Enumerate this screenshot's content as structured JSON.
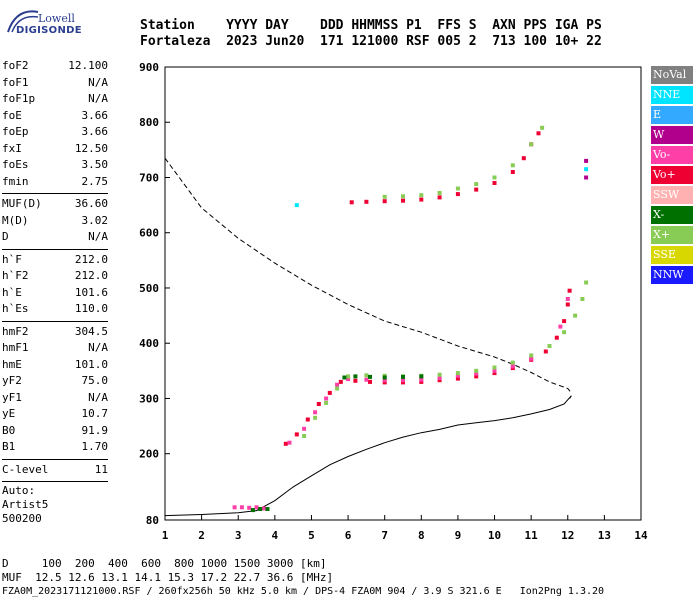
{
  "logo": {
    "line1": "Lowell",
    "line2": "DIGISONDE"
  },
  "header": {
    "columns": "Station    YYYY DAY    DDD HHMMSS P1  FFS S  AXN PPS IGA PS",
    "values": "Fortaleza  2023 Jun20  171 121000 RSF 005 2  713 100 10+ 22"
  },
  "params": {
    "group1": [
      {
        "k": "foF2",
        "v": "12.100"
      },
      {
        "k": "foF1",
        "v": "N/A"
      },
      {
        "k": "foF1p",
        "v": "N/A"
      },
      {
        "k": "foE",
        "v": "3.66"
      },
      {
        "k": "foEp",
        "v": "3.66"
      },
      {
        "k": "fxI",
        "v": "12.50"
      },
      {
        "k": "foEs",
        "v": "3.50"
      },
      {
        "k": "fmin",
        "v": "2.75"
      }
    ],
    "group2": [
      {
        "k": "MUF(D)",
        "v": "36.60"
      },
      {
        "k": "M(D)",
        "v": "3.02"
      },
      {
        "k": "D",
        "v": "N/A"
      }
    ],
    "group3": [
      {
        "k": "h`F",
        "v": "212.0"
      },
      {
        "k": "h`F2",
        "v": "212.0"
      },
      {
        "k": "h`E",
        "v": "101.6"
      },
      {
        "k": "h`Es",
        "v": "110.0"
      }
    ],
    "group4": [
      {
        "k": "hmF2",
        "v": "304.5"
      },
      {
        "k": "hmF1",
        "v": "N/A"
      },
      {
        "k": "hmE",
        "v": "101.0"
      },
      {
        "k": "yF2",
        "v": "75.0"
      },
      {
        "k": "yF1",
        "v": "N/A"
      },
      {
        "k": "yE",
        "v": "10.7"
      },
      {
        "k": "B0",
        "v": "91.9"
      },
      {
        "k": "B1",
        "v": "1.70"
      }
    ],
    "group5": [
      {
        "k": "C-level",
        "v": "11"
      }
    ],
    "auto": [
      "Auto:",
      "Artist5",
      "500200"
    ]
  },
  "legend": [
    {
      "label": "NoVal",
      "color": "#808080"
    },
    {
      "label": "NNE",
      "color": "#00e5ff"
    },
    {
      "label": "E",
      "color": "#33aaff"
    },
    {
      "label": "W",
      "color": "#b0008c"
    },
    {
      "label": "Vo-",
      "color": "#ff3fa8"
    },
    {
      "label": "Vo+",
      "color": "#ee0033"
    },
    {
      "label": "SSW",
      "color": "#ffb0b0"
    },
    {
      "label": "X-",
      "color": "#007000"
    },
    {
      "label": "X+",
      "color": "#88cc55"
    },
    {
      "label": "SSE",
      "color": "#d8d800"
    },
    {
      "label": "NNW",
      "color": "#1a1aff"
    }
  ],
  "bottom": {
    "d_line": "D     100  200  400  600  800 1000 1500 3000 [km]",
    "muf_line": "MUF  12.5 12.6 13.1 14.1 15.3 17.2 22.7 36.6 [MHz]"
  },
  "footer": "FZA0M_2023171121000.RSF / 260fx256h 50 kHz 5.0 km / DPS-4 FZA0M 904 / 3.9 S 321.6 E   Ion2Png 1.3.20",
  "chart_data": {
    "type": "scatter",
    "x_ticks": [
      1,
      2,
      3,
      4,
      5,
      6,
      7,
      8,
      9,
      10,
      11,
      12,
      13,
      14
    ],
    "y_ticks": [
      80,
      200,
      300,
      400,
      500,
      600,
      700,
      800,
      900
    ],
    "xlim": [
      1,
      14
    ],
    "ylim": [
      80,
      900
    ],
    "grid": false,
    "series": [
      {
        "name": "profile",
        "color": "#000000",
        "style": "solid",
        "x": [
          1.0,
          2.0,
          3.0,
          3.5,
          4.0,
          4.5,
          5.0,
          5.5,
          6.0,
          6.5,
          7.0,
          7.5,
          8.0,
          8.5,
          9.0,
          9.5,
          10.0,
          10.5,
          11.0,
          11.5,
          11.9,
          12.1,
          12.05
        ],
        "y": [
          88,
          90,
          93,
          97,
          115,
          140,
          160,
          180,
          195,
          208,
          220,
          230,
          238,
          244,
          252,
          256,
          260,
          265,
          272,
          280,
          290,
          305,
          300
        ]
      },
      {
        "name": "dashed",
        "color": "#000000",
        "style": "dashed",
        "x": [
          1.0,
          1.5,
          2.0,
          3.0,
          4.0,
          5.0,
          6.0,
          7.0,
          8.0,
          9.0,
          10.0,
          10.5,
          11.0,
          11.5,
          12.0,
          12.1
        ],
        "y": [
          735,
          690,
          645,
          590,
          545,
          505,
          470,
          440,
          420,
          395,
          375,
          362,
          347,
          330,
          318,
          310
        ]
      },
      {
        "name": "Vo+",
        "color": "#ee0033",
        "style": "points",
        "x": [
          4.3,
          4.6,
          4.9,
          5.2,
          5.5,
          5.8,
          6.2,
          6.6,
          7.0,
          7.5,
          8.0,
          8.5,
          9.0,
          9.5,
          10.0,
          10.5,
          11.0,
          11.4,
          11.7,
          11.9,
          12.0,
          12.05
        ],
        "y": [
          218,
          235,
          262,
          290,
          310,
          330,
          332,
          330,
          329,
          329,
          330,
          333,
          336,
          340,
          346,
          355,
          370,
          385,
          410,
          440,
          470,
          495
        ]
      },
      {
        "name": "Vo-",
        "color": "#ff3fa8",
        "style": "points",
        "x": [
          4.4,
          4.8,
          5.1,
          5.4,
          5.7,
          6.0,
          6.5,
          7.0,
          7.5,
          8.0,
          8.5,
          9.0,
          9.5,
          10.0,
          10.5,
          11.0,
          11.5,
          11.8,
          12.0
        ],
        "y": [
          220,
          245,
          275,
          300,
          325,
          335,
          334,
          333,
          333,
          334,
          337,
          341,
          345,
          350,
          358,
          372,
          395,
          430,
          480
        ]
      },
      {
        "name": "X+",
        "color": "#88cc55",
        "style": "points",
        "x": [
          4.8,
          5.1,
          5.4,
          5.7,
          6.0,
          6.5,
          7.0,
          7.5,
          8.0,
          8.5,
          9.0,
          9.5,
          10.0,
          10.5,
          11.0,
          11.5,
          11.9,
          12.2,
          12.4,
          12.5
        ],
        "y": [
          232,
          265,
          292,
          318,
          340,
          342,
          341,
          340,
          341,
          343,
          346,
          350,
          356,
          365,
          378,
          395,
          420,
          450,
          480,
          510
        ]
      },
      {
        "name": "X-",
        "color": "#007000",
        "style": "points",
        "x": [
          5.9,
          6.2,
          6.6,
          7.0,
          7.5,
          8.0
        ],
        "y": [
          338,
          340,
          339,
          338,
          339,
          340
        ]
      },
      {
        "name": "Vo+ upper",
        "color": "#ee0033",
        "style": "points",
        "x": [
          6.1,
          6.5,
          7.0,
          7.5,
          8.0,
          8.5,
          9.0,
          9.5,
          10.0,
          10.5,
          10.8,
          11.0,
          11.2
        ],
        "y": [
          655,
          656,
          657,
          658,
          660,
          664,
          670,
          678,
          690,
          710,
          735,
          760,
          780
        ]
      },
      {
        "name": "X+ upper",
        "color": "#88cc55",
        "style": "points",
        "x": [
          7.0,
          7.5,
          8.0,
          8.5,
          9.0,
          9.5,
          10.0,
          10.5,
          11.0,
          11.3
        ],
        "y": [
          665,
          666,
          668,
          672,
          680,
          688,
          700,
          722,
          760,
          790
        ]
      },
      {
        "name": "Es",
        "color": "#ff3fa8",
        "style": "points",
        "x": [
          2.9,
          3.1,
          3.3,
          3.5,
          3.7
        ],
        "y": [
          103,
          103,
          102,
          103,
          101
        ]
      },
      {
        "name": "Es X",
        "color": "#007000",
        "style": "points",
        "x": [
          3.4,
          3.6,
          3.8
        ],
        "y": [
          98,
          100,
          100
        ]
      },
      {
        "name": "NNE",
        "color": "#00e5ff",
        "style": "points",
        "x": [
          4.6,
          12.5
        ],
        "y": [
          650,
          715
        ]
      },
      {
        "name": "W",
        "color": "#b0008c",
        "style": "points",
        "x": [
          12.5,
          12.5
        ],
        "y": [
          730,
          700
        ]
      }
    ]
  }
}
